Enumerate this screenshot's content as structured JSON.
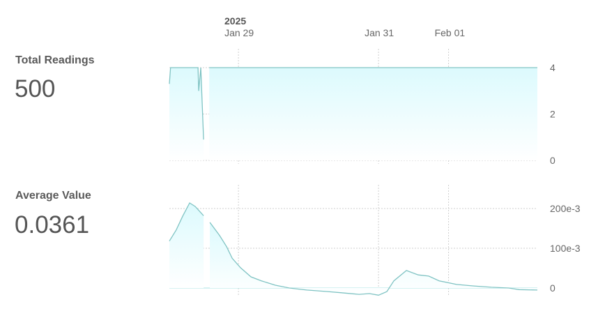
{
  "stats": [
    {
      "label": "Total Readings",
      "value": "500"
    },
    {
      "label": "Average Value",
      "value": "0.0361"
    }
  ],
  "colors": {
    "line": "#7fc3c3",
    "fill_top": "#dcfafd",
    "grid": "#cfcfcf",
    "zero_line": "#a8e3e6"
  },
  "x_axis": {
    "year_label": "2025",
    "xlim": [
      "2025-01-28T00:20",
      "2025-02-02T06:26"
    ],
    "ticks": [
      {
        "date": "2025-01-29T00:00",
        "label": "Jan 29"
      },
      {
        "date": "2025-01-31T00:00",
        "label": "Jan 31"
      },
      {
        "date": "2025-02-01T00:00",
        "label": "Feb 01"
      }
    ]
  },
  "chart_data": [
    {
      "type": "area",
      "ylim": [
        0,
        4
      ],
      "grid": true,
      "y_ticks": [
        {
          "value": 4,
          "label": "4"
        },
        {
          "value": 2,
          "label": "2"
        },
        {
          "value": 0,
          "label": "0"
        }
      ],
      "points": [
        [
          "2025-01-28T00:20",
          3.3
        ],
        [
          "2025-01-28T00:45",
          4
        ],
        [
          "2025-01-28T10:09",
          4
        ],
        [
          "2025-01-28T10:23",
          3
        ],
        [
          "2025-01-28T11:06",
          4
        ],
        [
          "2025-01-28T12:04",
          0.9
        ],
        [
          "2025-01-28T13:00",
          null
        ],
        [
          "2025-01-28T13:59",
          4
        ],
        [
          "2025-02-02T06:26",
          4
        ]
      ]
    },
    {
      "type": "area",
      "ylim": [
        -0.02,
        0.23
      ],
      "grid": true,
      "y_ticks": [
        {
          "value": 0.2,
          "label": "200e-3"
        },
        {
          "value": 0.1,
          "label": "100e-3"
        },
        {
          "value": 0,
          "label": "0"
        }
      ],
      "points": [
        [
          "2025-01-28T00:20",
          0.118
        ],
        [
          "2025-01-28T02:40",
          0.146
        ],
        [
          "2025-01-28T04:55",
          0.181
        ],
        [
          "2025-01-28T07:17",
          0.214
        ],
        [
          "2025-01-28T09:12",
          0.205
        ],
        [
          "2025-01-28T12:04",
          0.182
        ],
        [
          "2025-01-28T13:00",
          null
        ],
        [
          "2025-01-28T14:12",
          0.165
        ],
        [
          "2025-01-28T17:33",
          0.132
        ],
        [
          "2025-01-28T19:56",
          0.104
        ],
        [
          "2025-01-28T21:51",
          0.075
        ],
        [
          "2025-01-29T00:43",
          0.051
        ],
        [
          "2025-01-29T04:18",
          0.028
        ],
        [
          "2025-01-29T07:53",
          0.018
        ],
        [
          "2025-01-29T12:39",
          0.007
        ],
        [
          "2025-01-29T17:26",
          0.0
        ],
        [
          "2025-01-29T23:24",
          -0.005
        ],
        [
          "2025-01-30T06:34",
          -0.009
        ],
        [
          "2025-01-30T11:20",
          -0.012
        ],
        [
          "2025-01-30T17:19",
          -0.016
        ],
        [
          "2025-01-30T20:54",
          -0.014
        ],
        [
          "2025-01-31T00:00",
          -0.018
        ],
        [
          "2025-01-31T02:52",
          -0.009
        ],
        [
          "2025-01-31T05:15",
          0.018
        ],
        [
          "2025-01-31T09:33",
          0.044
        ],
        [
          "2025-01-31T13:37",
          0.033
        ],
        [
          "2025-01-31T17:12",
          0.03
        ],
        [
          "2025-01-31T20:47",
          0.018
        ],
        [
          "2025-02-01T02:45",
          0.009
        ],
        [
          "2025-02-01T08:43",
          0.005
        ],
        [
          "2025-02-01T14:41",
          0.002
        ],
        [
          "2025-02-01T20:39",
          0.0
        ],
        [
          "2025-02-02T00:14",
          -0.004
        ],
        [
          "2025-02-02T06:26",
          -0.005
        ]
      ]
    }
  ]
}
